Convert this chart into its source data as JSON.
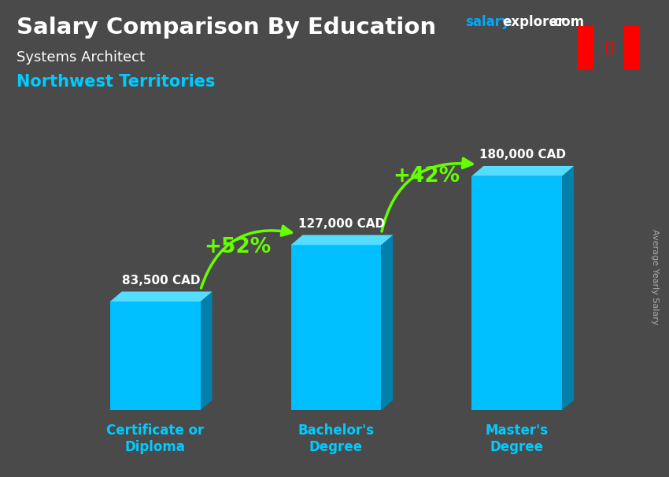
{
  "title": "Salary Comparison By Education",
  "subtitle_job": "Systems Architect",
  "subtitle_location": "Northwest Territories",
  "ylabel": "Average Yearly Salary",
  "categories": [
    "Certificate or\nDiploma",
    "Bachelor's\nDegree",
    "Master's\nDegree"
  ],
  "values": [
    83500,
    127000,
    180000
  ],
  "value_labels": [
    "83,500 CAD",
    "127,000 CAD",
    "180,000 CAD"
  ],
  "pct_labels": [
    "+52%",
    "+42%"
  ],
  "bar_color": "#00bfff",
  "bar_color_top": "#55ddff",
  "bar_color_side": "#0080aa",
  "arrow_color": "#66ff00",
  "title_color": "#ffffff",
  "subtitle_job_color": "#ffffff",
  "subtitle_location_color": "#00ccff",
  "category_label_color": "#00ccff",
  "value_label_color": "#ffffff",
  "pct_label_color": "#66ff00",
  "ylabel_color": "#aaaaaa",
  "site_color1": "#00aaff",
  "site_color2": "#ffffff",
  "bg_color": "#4a4a4a",
  "ylim": [
    0,
    220000
  ],
  "figsize": [
    8.5,
    6.06
  ],
  "dpi": 100,
  "bar_width": 0.55,
  "x_positions": [
    1.0,
    2.1,
    3.2
  ]
}
